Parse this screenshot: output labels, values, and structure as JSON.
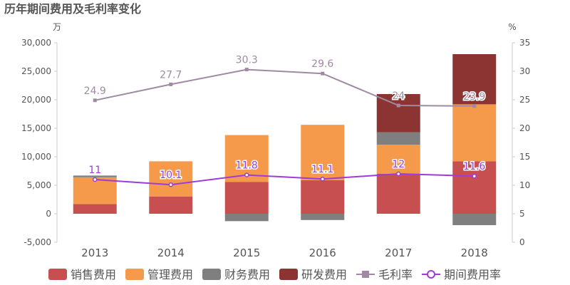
{
  "chart_data": {
    "type": "bar",
    "title": "历年期间费用及毛利率变化",
    "left_unit": "万",
    "right_unit": "%",
    "categories": [
      "2013",
      "2014",
      "2015",
      "2016",
      "2017",
      "2018"
    ],
    "left_axis": {
      "min": -5000,
      "max": 30000,
      "step": 5000,
      "tick_labels": [
        "-5,000",
        "0",
        "5,000",
        "10,000",
        "15,000",
        "20,000",
        "25,000",
        "30,000"
      ]
    },
    "right_axis": {
      "min": 0,
      "max": 35,
      "step": 5,
      "tick_labels": [
        "0",
        "5",
        "10",
        "15",
        "20",
        "25",
        "30",
        "35"
      ]
    },
    "stack_series": [
      {
        "name": "销售费用",
        "color": "#c84f4f",
        "values": [
          1700,
          3000,
          5600,
          5900,
          7000,
          9200
        ]
      },
      {
        "name": "管理费用",
        "color": "#f5994a",
        "values": [
          4700,
          6200,
          8200,
          9700,
          5100,
          10000
        ]
      },
      {
        "name": "财务费用",
        "color": "#7f7f7f",
        "values": [
          300,
          0,
          -1300,
          -1100,
          2200,
          -2000
        ]
      },
      {
        "name": "研发费用",
        "color": "#8b3432",
        "values": [
          0,
          0,
          0,
          0,
          6700,
          8800
        ]
      }
    ],
    "line_series": [
      {
        "name": "毛利率",
        "color": "#a08aa3",
        "marker": "square",
        "values": [
          24.9,
          27.7,
          30.3,
          29.6,
          24,
          23.9
        ],
        "labels": [
          "24.9",
          "27.7",
          "30.3",
          "29.6",
          "24",
          "23.9"
        ]
      },
      {
        "name": "期间费用率",
        "color": "#9b3cdb",
        "marker": "circle",
        "values": [
          11,
          10.1,
          11.8,
          11.1,
          12,
          11.6
        ],
        "labels": [
          "11",
          "10.1",
          "11.8",
          "11.1",
          "12",
          "11.6"
        ]
      }
    ],
    "legend_position": "bottom",
    "grid": false
  }
}
